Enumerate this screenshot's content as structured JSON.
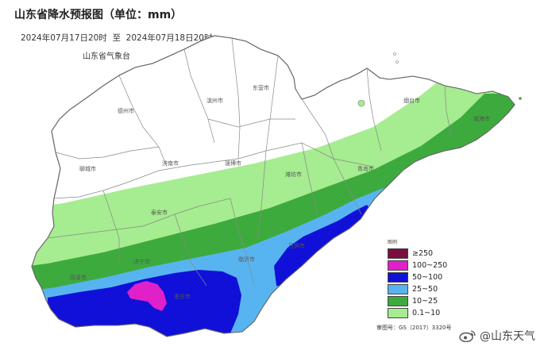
{
  "header": {
    "title": "山东省降水预报图（单位：mm）",
    "period": "2024年07月17日20时  至  2024年07月18日20时",
    "agency": "山东省气象台"
  },
  "legend": {
    "heading": "图例",
    "items": [
      {
        "label": "≥250",
        "color": "#7b0e3e"
      },
      {
        "label": "100~250",
        "color": "#e020c8"
      },
      {
        "label": "50~100",
        "color": "#1010d8"
      },
      {
        "label": "25~50",
        "color": "#58b4f0"
      },
      {
        "label": "10~25",
        "color": "#3daa3d"
      },
      {
        "label": "0.1~10",
        "color": "#a6ec90"
      }
    ]
  },
  "review_number": "审图号：GS（2017）3320号",
  "watermark": "@山东天气",
  "icons": {
    "watermark_logo": "weibo-logo-icon"
  },
  "cities": [
    {
      "id": "dezhou",
      "label": "德州市"
    },
    {
      "id": "binzhou",
      "label": "滨州市"
    },
    {
      "id": "dongying",
      "label": "东营市"
    },
    {
      "id": "yantai",
      "label": "烟台市"
    },
    {
      "id": "weihai",
      "label": "威海市"
    },
    {
      "id": "liaocheng",
      "label": "聊城市"
    },
    {
      "id": "jinan",
      "label": "济南市"
    },
    {
      "id": "zibo",
      "label": "淄博市"
    },
    {
      "id": "weifang",
      "label": "潍坊市"
    },
    {
      "id": "qingdao",
      "label": "青岛市"
    },
    {
      "id": "taian",
      "label": "泰安市"
    },
    {
      "id": "jining",
      "label": "济宁市"
    },
    {
      "id": "linyi",
      "label": "临沂市"
    },
    {
      "id": "rizhao",
      "label": "日照市"
    },
    {
      "id": "heze",
      "label": "菏泽市"
    },
    {
      "id": "zaozhuang",
      "label": "枣庄市"
    }
  ]
}
